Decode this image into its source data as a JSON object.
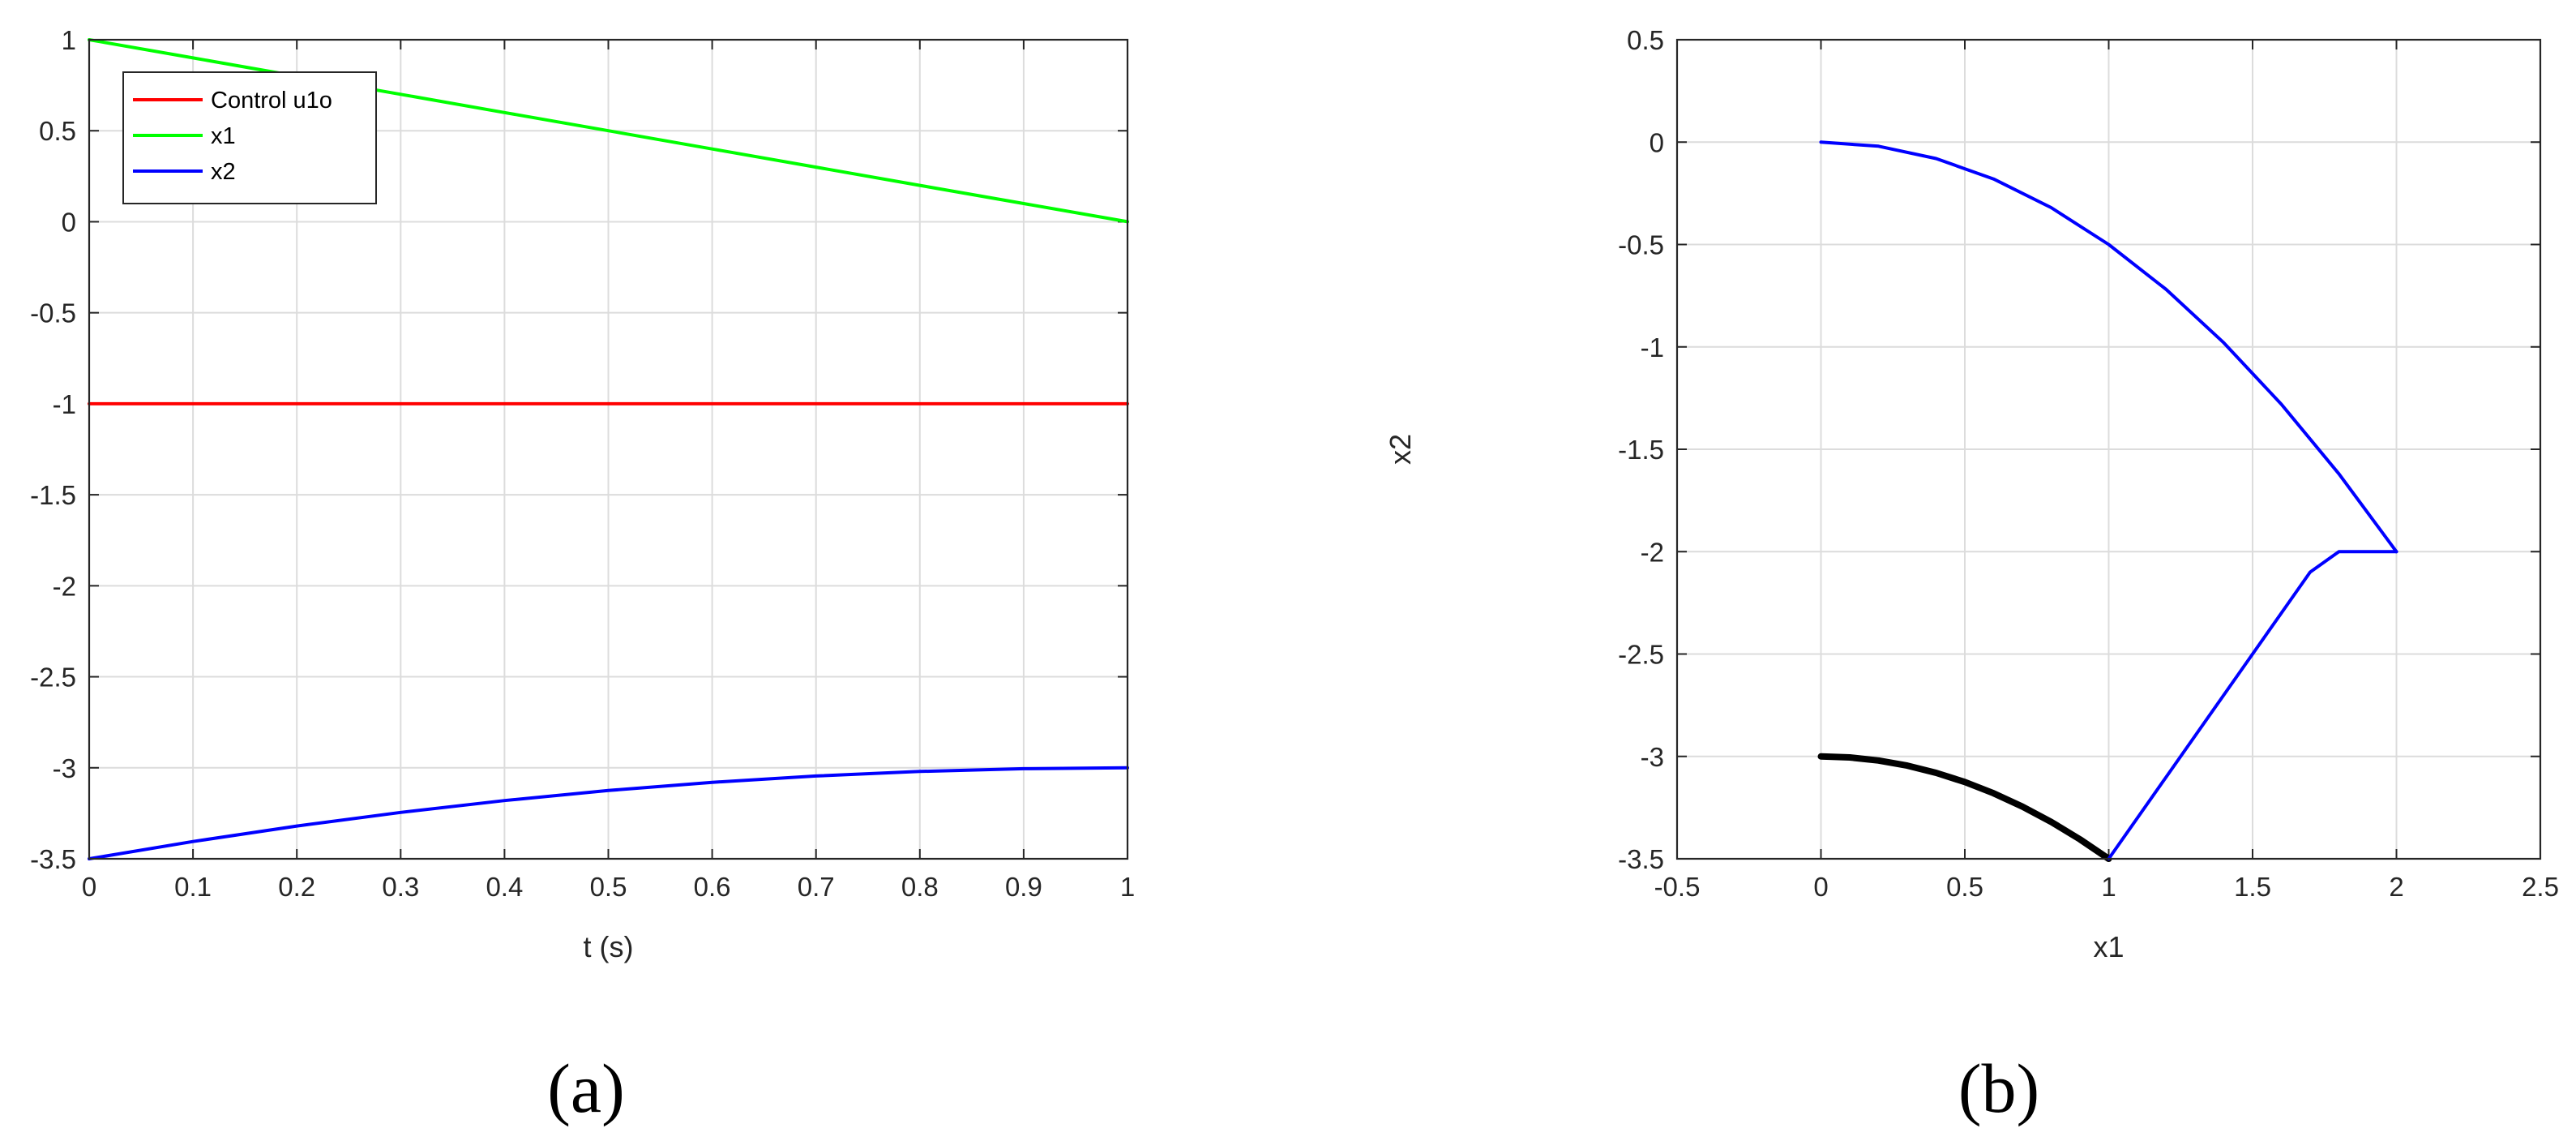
{
  "chart_data": [
    {
      "type": "line",
      "title": "",
      "xlabel": "t (s)",
      "ylabel": "",
      "xlim": [
        0,
        1
      ],
      "ylim": [
        -3.5,
        1
      ],
      "xticks": [
        "0",
        "0.1",
        "0.2",
        "0.3",
        "0.4",
        "0.5",
        "0.6",
        "0.7",
        "0.8",
        "0.9",
        "1"
      ],
      "yticks": [
        "1",
        "0.5",
        "0",
        "-0.5",
        "-1",
        "-1.5",
        "-2",
        "-2.5",
        "-3",
        "-3.5"
      ],
      "grid": true,
      "legend": "top-left",
      "caption": "(a)",
      "series": [
        {
          "name": "Control u1o",
          "color": "#ff0000",
          "x": [
            0,
            1
          ],
          "y": [
            -1,
            -1
          ]
        },
        {
          "name": "x1",
          "color": "#00ff00",
          "x": [
            0,
            0.1,
            0.2,
            0.3,
            0.4,
            0.5,
            0.6,
            0.7,
            0.8,
            0.9,
            1
          ],
          "y": [
            1,
            0.9,
            0.8,
            0.7,
            0.6,
            0.5,
            0.4,
            0.3,
            0.2,
            0.1,
            0
          ]
        },
        {
          "name": "x2",
          "color": "#0000ff",
          "x": [
            0,
            0.1,
            0.2,
            0.3,
            0.4,
            0.5,
            0.6,
            0.7,
            0.8,
            0.9,
            1
          ],
          "y": [
            -3.5,
            -3.405,
            -3.32,
            -3.245,
            -3.18,
            -3.125,
            -3.08,
            -3.045,
            -3.02,
            -3.005,
            -3
          ]
        }
      ]
    },
    {
      "type": "line",
      "title": "",
      "xlabel": "x1",
      "ylabel": "x2",
      "xlim": [
        -0.5,
        2.5
      ],
      "ylim": [
        -3.5,
        0.5
      ],
      "xticks": [
        "-0.5",
        "0",
        "0.5",
        "1",
        "1.5",
        "2",
        "2.5"
      ],
      "yticks": [
        "0.5",
        "0",
        "-0.5",
        "-1",
        "-1.5",
        "-2",
        "-2.5",
        "-3",
        "-3.5"
      ],
      "grid": true,
      "caption": "(b)",
      "series": [
        {
          "color": "#000000",
          "x": [
            0,
            0.1,
            0.2,
            0.3,
            0.4,
            0.5,
            0.6,
            0.7,
            0.8,
            0.9,
            1
          ],
          "y": [
            -3,
            -3.005,
            -3.02,
            -3.045,
            -3.08,
            -3.125,
            -3.18,
            -3.245,
            -3.32,
            -3.405,
            -3.5
          ]
        },
        {
          "color": "#0000ff",
          "x": [
            1,
            1.1,
            1.2,
            1.3,
            1.4,
            1.5,
            1.6,
            1.7,
            1.8,
            1.9,
            2
          ],
          "y": [
            -3.5,
            -3.3,
            -3.1,
            -2.9,
            -2.7,
            -2.5,
            -2.3,
            -2.1,
            -2.0,
            -2.0,
            -2.0
          ]
        },
        {
          "color": "#0000ff",
          "x": [
            0,
            0.2,
            0.4,
            0.6,
            0.8,
            1.0,
            1.2,
            1.4,
            1.6,
            1.8,
            2.0
          ],
          "y": [
            0,
            -0.02,
            -0.08,
            -0.18,
            -0.32,
            -0.5,
            -0.72,
            -0.98,
            -1.28,
            -1.62,
            -2.0
          ]
        }
      ]
    }
  ]
}
